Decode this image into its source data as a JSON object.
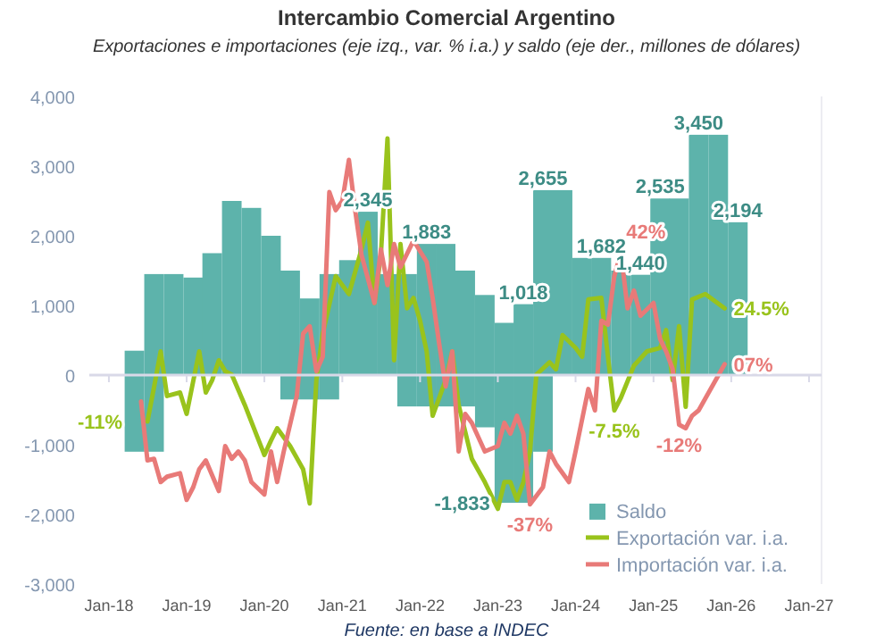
{
  "chart_data": {
    "type": "bar",
    "title": "Intercambio Comercial Argentino",
    "subtitle": "Exportaciones e importaciones (eje izq., var. % i.a.) y saldo (eje der., millones de dólares)",
    "xlim": [
      "2017-10",
      "2027-03"
    ],
    "xticks": [
      {
        "value": "2018-01",
        "label": "Jan-18"
      },
      {
        "value": "2019-01",
        "label": "Jan-19"
      },
      {
        "value": "2020-01",
        "label": "Jan-20"
      },
      {
        "value": "2021-01",
        "label": "Jan-21"
      },
      {
        "value": "2022-01",
        "label": "Jan-22"
      },
      {
        "value": "2023-01",
        "label": "Jan-23"
      },
      {
        "value": "2024-01",
        "label": "Jan-24"
      },
      {
        "value": "2025-01",
        "label": "Jan-25"
      },
      {
        "value": "2026-01",
        "label": "Jan-26"
      },
      {
        "value": "2027-01",
        "label": "Jan-27"
      }
    ],
    "ylim": [
      -3000,
      4000
    ],
    "yticks": [
      {
        "value": -3000,
        "label": "-3,000"
      },
      {
        "value": -2000,
        "label": "-2,000"
      },
      {
        "value": -1000,
        "label": "-1,000"
      },
      0,
      {
        "value": 1000,
        "label": "1,000"
      },
      {
        "value": 2000,
        "label": "2,000"
      },
      {
        "value": 3000,
        "label": "3,000"
      },
      {
        "value": 4000,
        "label": "4,000"
      }
    ],
    "y2lim": [
      -62,
      91
    ],
    "legend": "bottom right",
    "series": [
      {
        "name": "Saldo",
        "color": "#5db3ab",
        "x": [
          "2018-05",
          "2018-08",
          "2018-11",
          "2019-02",
          "2019-05",
          "2019-08",
          "2019-11",
          "2020-02",
          "2020-05",
          "2020-08",
          "2020-11",
          "2021-02",
          "2021-05",
          "2021-08",
          "2021-11",
          "2022-02",
          "2022-05",
          "2022-08",
          "2022-11",
          "2023-02",
          "2023-05",
          "2023-08",
          "2023-11",
          "2024-02",
          "2024-05",
          "2024-08",
          "2024-11",
          "2025-02",
          "2025-05",
          "2025-08",
          "2025-11",
          "2026-02"
        ],
        "values": [
          350,
          1450,
          1450,
          1400,
          1750,
          2500,
          2400,
          2000,
          1500,
          1100,
          1450,
          1650,
          2345,
          1450,
          1450,
          1883,
          1883,
          1500,
          1150,
          750,
          1018,
          2655,
          2655,
          1682,
          1682,
          1500,
          1440,
          2535,
          2535,
          3450,
          3450,
          2194
        ]
      },
      {
        "color": "#5db3ab",
        "x": [
          "2018-05",
          "2018-08",
          "2018-11",
          "2019-02",
          "2019-05",
          "2019-08",
          "2019-11",
          "2020-02",
          "2020-05",
          "2020-08",
          "2020-11",
          "2021-02",
          "2021-05",
          "2021-08",
          "2021-11",
          "2022-02",
          "2022-05",
          "2022-08",
          "2022-11",
          "2023-02",
          "2023-05",
          "2023-08"
        ],
        "values": [
          -1100,
          -1100,
          null,
          null,
          null,
          null,
          null,
          null,
          -350,
          -350,
          -350,
          null,
          null,
          null,
          -450,
          -450,
          -450,
          -450,
          -750,
          -1833,
          -1833,
          -1100
        ]
      },
      {
        "name": "Exportación var. i.a.",
        "type": "line",
        "axis": "y2",
        "color": "#99c31c",
        "x": [
          "2018-07",
          "2018-08",
          "2018-09",
          "2018-10",
          "2018-12",
          "2019-01",
          "2019-03",
          "2019-04",
          "2019-05",
          "2019-06",
          "2019-07",
          "2019-08",
          "2019-10",
          "2020-01",
          "2020-02",
          "2020-03",
          "2020-05",
          "2020-07",
          "2020-08",
          "2020-09",
          "2020-10",
          "2020-12",
          "2021-02",
          "2021-04",
          "2021-05",
          "2021-06",
          "2021-07",
          "2021-08",
          "2021-09",
          "2021-10",
          "2021-11",
          "2021-12",
          "2022-01",
          "2022-02",
          "2022-03",
          "2022-05",
          "2022-06",
          "2022-07",
          "2022-09",
          "2022-11",
          "2023-01",
          "2023-02",
          "2023-03",
          "2023-04",
          "2023-05",
          "2023-06",
          "2023-07",
          "2023-09",
          "2023-10",
          "2023-11",
          "2024-01",
          "2024-02",
          "2024-03",
          "2024-05",
          "2024-06",
          "2024-07",
          "2024-08",
          "2024-10",
          "2024-12",
          "2025-02",
          "2025-03",
          "2025-04",
          "2025-05",
          "2025-06",
          "2025-07",
          "2025-09",
          "2025-12"
        ],
        "values": [
          -11,
          -0.2,
          11,
          -3,
          -1.9,
          -8.6,
          11,
          -1.9,
          2,
          8.2,
          4.8,
          3.7,
          -5.8,
          -21.5,
          -17,
          -13.1,
          -18.7,
          -26,
          -36.7,
          2,
          16.6,
          34.6,
          29,
          43,
          51.4,
          26.2,
          41.3,
          77.8,
          8.2,
          44.7,
          24.5,
          27.8,
          20.6,
          11,
          -9.2,
          2,
          11,
          -5.8,
          -22.7,
          -30,
          -38.4,
          -30,
          -30,
          -35.6,
          -30,
          -20.4,
          3.7,
          7.6,
          5.4,
          16.1,
          12.1,
          9.3,
          27.3,
          27.8,
          9.3,
          -7.5,
          -3.5,
          6.5,
          11,
          12.1,
          17.7,
          2,
          18.9,
          -6.4,
          27.3,
          29,
          24.5
        ],
        "value_labels": [
          "-11%",
          null,
          null,
          null,
          null,
          null,
          null,
          null,
          null,
          null,
          null,
          null,
          null,
          null,
          null,
          null,
          null,
          null,
          null,
          null,
          null,
          null,
          null,
          null,
          null,
          null,
          null,
          null,
          null,
          null,
          null,
          null,
          null,
          null,
          null,
          null,
          null,
          null,
          null,
          null,
          null,
          null,
          null,
          null,
          null,
          null,
          null,
          null,
          null,
          null,
          null,
          null,
          null,
          null,
          null,
          "-7.5%",
          null,
          null,
          null,
          null,
          null,
          null,
          null,
          null,
          null,
          null,
          "24.5%"
        ]
      },
      {
        "name": "Importación var. i.a.",
        "type": "line",
        "axis": "y2",
        "color": "#e87a78",
        "x": [
          "2018-06",
          "2018-07",
          "2018-08",
          "2018-09",
          "2018-10",
          "2018-12",
          "2019-01",
          "2019-02",
          "2019-03",
          "2019-04",
          "2019-06",
          "2019-07",
          "2019-08",
          "2019-09",
          "2019-10",
          "2019-11",
          "2020-01",
          "2020-02",
          "2020-03",
          "2020-04",
          "2020-06",
          "2020-07",
          "2020-08",
          "2020-09",
          "2020-10",
          "2020-11",
          "2020-12",
          "2021-01",
          "2021-02",
          "2021-03",
          "2021-04",
          "2021-06",
          "2021-07",
          "2021-08",
          "2021-09",
          "2021-10",
          "2021-12",
          "2022-02",
          "2022-03",
          "2022-04",
          "2022-05",
          "2022-06",
          "2022-07",
          "2022-08",
          "2022-09",
          "2022-11",
          "2023-01",
          "2023-02",
          "2023-03",
          "2023-04",
          "2023-05",
          "2023-06",
          "2023-08",
          "2023-09",
          "2023-10",
          "2023-12",
          "2024-01",
          "2024-03",
          "2024-04",
          "2024-05",
          "2024-06",
          "2024-07",
          "2024-08",
          "2024-09",
          "2024-10",
          "2024-11",
          "2025-01",
          "2025-02",
          "2025-03",
          "2025-04",
          "2025-05",
          "2025-06",
          "2025-07",
          "2025-08",
          "2025-12"
        ],
        "values": [
          -4.7,
          -23.2,
          -22.7,
          -30,
          -28.3,
          -27.2,
          -35.6,
          -31.6,
          -26,
          -23.2,
          -32.8,
          -18.7,
          -22.7,
          -20.4,
          -23.2,
          -30,
          -33.9,
          -20.4,
          -30,
          -20.4,
          -3,
          16.6,
          18.9,
          4.8,
          9.3,
          61,
          55.3,
          58.2,
          71.1,
          55.9,
          41.3,
          26.2,
          43,
          31.8,
          44.7,
          37.4,
          45.8,
          39.1,
          27.8,
          13.3,
          0,
          11,
          -20.4,
          -8.6,
          -11.4,
          -20.4,
          -18.7,
          -11.4,
          -14.8,
          -9.2,
          -14.8,
          -37,
          -31.6,
          -20.4,
          -24.3,
          -30,
          -20.4,
          -0.8,
          -7.5,
          20.6,
          19.4,
          34.6,
          42,
          24.5,
          30.1,
          22.2,
          26.2,
          14.9,
          11,
          5.4,
          -12,
          -13.1,
          -9.2,
          -7.5,
          7
        ],
        "value_labels": [
          null,
          null,
          null,
          null,
          null,
          null,
          null,
          null,
          null,
          null,
          null,
          null,
          null,
          null,
          null,
          null,
          null,
          null,
          null,
          null,
          null,
          null,
          null,
          null,
          null,
          null,
          null,
          null,
          null,
          null,
          null,
          null,
          null,
          null,
          null,
          null,
          null,
          null,
          null,
          null,
          null,
          null,
          null,
          null,
          null,
          null,
          null,
          null,
          null,
          null,
          null,
          "-37%",
          null,
          null,
          null,
          null,
          null,
          null,
          null,
          null,
          null,
          null,
          "42%",
          null,
          null,
          null,
          null,
          null,
          null,
          null,
          "-12%",
          null,
          null,
          null,
          "07%"
        ]
      }
    ],
    "annotations": [
      {
        "text": "2,345",
        "x": "2021-05",
        "y": 2345
      },
      {
        "text": "1,883",
        "x": "2022-02",
        "y": 1883
      },
      {
        "text": "1,018",
        "x": "2023-05",
        "y": 1018
      },
      {
        "text": "-1,833",
        "x": "2023-02",
        "y": -1833
      },
      {
        "text": "2,655",
        "x": "2023-08",
        "y": 2655
      },
      {
        "text": "1,682",
        "x": "2024-05",
        "y": 1682
      },
      {
        "text": "1,440",
        "x": "2024-11",
        "y": 1440
      },
      {
        "text": "2,535",
        "x": "2025-02",
        "y": 2535
      },
      {
        "text": "3,450",
        "x": "2025-08",
        "y": 3450
      },
      {
        "text": "2,194",
        "x": "2026-02",
        "y": 2194
      },
      "Fuente: en base a INDEC"
    ]
  }
}
